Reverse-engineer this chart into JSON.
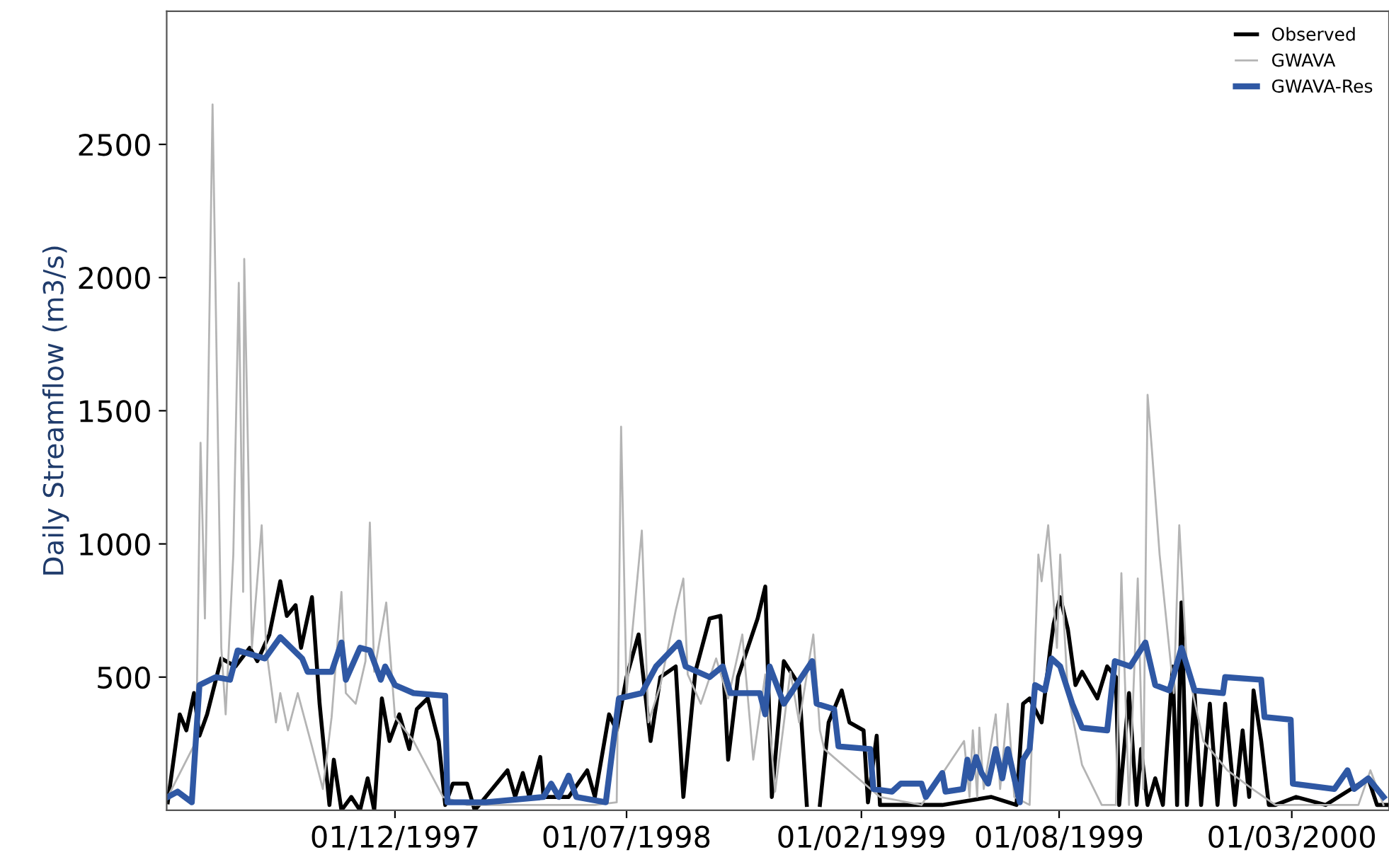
{
  "chart_data": {
    "type": "line",
    "ylabel": "Daily Streamflow (m3/s)",
    "xlim": [
      "1997-05-06",
      "2000-05-29"
    ],
    "ylim": [
      0,
      3000
    ],
    "xticks": [
      {
        "value": "1997-12-01",
        "label": "01/12/1997"
      },
      {
        "value": "1998-07-01",
        "label": "01/07/1998"
      },
      {
        "value": "1999-02-01",
        "label": "01/02/1999"
      },
      {
        "value": "1999-08-01",
        "label": "01/08/1999"
      },
      {
        "value": "2000-03-01",
        "label": "01/03/2000"
      }
    ],
    "yticks": [
      500,
      1000,
      1500,
      2000,
      2500
    ],
    "grid": false,
    "legend": "top right",
    "marker": "none",
    "line_style": "solid",
    "series": [
      {
        "name": "Observed",
        "color": "#000000",
        "x": [
          "1997-05-07",
          "1997-05-18",
          "1997-05-24",
          "1997-05-31",
          "1997-06-05",
          "1997-06-12",
          "1997-06-20",
          "1997-06-25",
          "1997-07-08",
          "1997-07-21",
          "1997-07-28",
          "1997-08-08",
          "1997-08-18",
          "1997-08-24",
          "1997-09-01",
          "1997-09-06",
          "1997-09-16",
          "1997-09-23",
          "1997-10-02",
          "1997-10-06",
          "1997-10-13",
          "1997-10-22",
          "1997-10-30",
          "1997-11-06",
          "1997-11-12",
          "1997-11-19",
          "1997-11-26",
          "1997-12-05",
          "1997-12-14",
          "1997-12-21",
          "1997-12-31",
          "1998-01-10",
          "1998-01-16",
          "1998-01-23",
          "1998-02-05",
          "1998-02-12",
          "1998-03-14",
          "1998-03-21",
          "1998-03-28",
          "1998-04-03",
          "1998-04-13",
          "1998-04-16",
          "1998-05-09",
          "1998-05-26",
          "1998-06-02",
          "1998-06-15",
          "1998-06-22",
          "1998-07-01",
          "1998-07-12",
          "1998-07-23",
          "1998-08-01",
          "1998-08-15",
          "1998-08-22",
          "1998-09-02",
          "1998-09-15",
          "1998-09-25",
          "1998-10-02",
          "1998-10-11",
          "1998-10-29",
          "1998-11-05",
          "1998-11-11",
          "1998-11-22",
          "1998-12-06",
          "1998-12-13",
          "1998-12-22",
          "1998-12-25",
          "1999-01-02",
          "1999-01-14",
          "1999-01-21",
          "1999-02-03",
          "1999-02-07",
          "1999-02-15",
          "1999-02-18",
          "1999-03-09",
          "1999-04-16",
          "1999-05-31",
          "1999-06-23",
          "1999-06-29",
          "1999-07-05",
          "1999-07-16",
          "1999-07-24",
          "1999-07-27",
          "1999-08-02",
          "1999-08-09",
          "1999-08-16",
          "1999-08-22",
          "1999-09-05",
          "1999-09-14",
          "1999-09-22",
          "1999-09-25",
          "1999-10-04",
          "1999-10-11",
          "1999-10-15",
          "1999-10-21",
          "1999-10-28",
          "1999-11-04",
          "1999-11-13",
          "1999-11-17",
          "1999-11-21",
          "1999-11-26",
          "1999-12-03",
          "1999-12-09",
          "1999-12-17",
          "1999-12-24",
          "1999-12-31",
          "2000-01-09",
          "2000-01-16",
          "2000-01-22",
          "2000-01-26",
          "2000-02-02",
          "2000-02-09",
          "2000-02-15",
          "2000-03-05",
          "2000-04-01",
          "2000-05-10",
          "2000-05-18",
          "2000-05-28"
        ],
        "values": [
          30,
          360,
          300,
          440,
          280,
          360,
          490,
          570,
          540,
          610,
          560,
          660,
          860,
          730,
          770,
          610,
          800,
          400,
          20,
          190,
          0,
          50,
          0,
          120,
          0,
          420,
          260,
          360,
          230,
          380,
          420,
          260,
          20,
          100,
          100,
          0,
          150,
          50,
          140,
          50,
          200,
          50,
          50,
          150,
          50,
          360,
          300,
          500,
          660,
          260,
          500,
          540,
          50,
          520,
          720,
          730,
          190,
          500,
          720,
          840,
          50,
          560,
          470,
          20,
          null,
          20,
          330,
          450,
          330,
          300,
          30,
          280,
          20,
          20,
          20,
          50,
          20,
          400,
          420,
          330,
          610,
          700,
          800,
          680,
          470,
          520,
          420,
          540,
          500,
          20,
          440,
          20,
          230,
          20,
          120,
          20,
          540,
          20,
          780,
          20,
          440,
          20,
          400,
          20,
          400,
          20,
          300,
          50,
          450,
          260,
          20,
          20,
          50,
          20,
          120,
          20,
          20
        ]
      },
      {
        "name": "GWAVA",
        "color": "#b4b4b4",
        "x": [
          "1997-05-07",
          "1997-06-02",
          "1997-06-06",
          "1997-06-10",
          "1997-06-17",
          "1997-06-25",
          "1997-06-29",
          "1997-07-06",
          "1997-07-11",
          "1997-07-15",
          "1997-07-16",
          "1997-07-23",
          "1997-08-01",
          "1997-08-05",
          "1997-08-14",
          "1997-08-18",
          "1997-08-25",
          "1997-09-03",
          "1997-09-16",
          "1997-09-26",
          "1997-10-04",
          "1997-10-13",
          "1997-10-17",
          "1997-10-26",
          "1997-11-04",
          "1997-11-08",
          "1997-11-12",
          "1997-11-23",
          "1997-12-01",
          "1997-12-18",
          "1998-01-14",
          "1998-02-05",
          "1998-06-02",
          "1998-06-22",
          "1998-06-26",
          "1998-07-01",
          "1998-07-15",
          "1998-07-21",
          "1998-08-01",
          "1998-08-15",
          "1998-08-22",
          "1998-08-26",
          "1998-09-07",
          "1998-09-21",
          "1998-10-02",
          "1998-10-15",
          "1998-10-25",
          "1998-11-05",
          "1998-11-14",
          "1998-11-28",
          "1998-12-06",
          "1998-12-19",
          "1998-12-25",
          "1998-12-29",
          "1999-01-29",
          "1999-02-18",
          "1999-03-28",
          "1999-05-06",
          "1999-05-11",
          "1999-05-14",
          "1999-05-18",
          "1999-05-20",
          "1999-05-24",
          "1999-06-04",
          "1999-06-08",
          "1999-06-15",
          "1999-06-21",
          "1999-07-05",
          "1999-07-13",
          "1999-07-16",
          "1999-07-22",
          "1999-07-30",
          "1999-08-02",
          "1999-08-09",
          "1999-08-22",
          "1999-09-09",
          "1999-09-22",
          "1999-09-27",
          "1999-10-04",
          "1999-10-12",
          "1999-10-17",
          "1999-10-21",
          "1999-10-25",
          "1999-11-01",
          "1999-11-14",
          "1999-11-19",
          "1999-11-26",
          "1999-12-11",
          "2000-01-02",
          "2000-01-25",
          "2000-02-15",
          "2000-05-01",
          "2000-05-12",
          "2000-05-24"
        ],
        "values": [
          50,
          260,
          1380,
          720,
          2650,
          610,
          360,
          960,
          1980,
          820,
          2070,
          610,
          1070,
          610,
          330,
          440,
          300,
          440,
          240,
          80,
          350,
          820,
          440,
          400,
          560,
          1080,
          520,
          780,
          350,
          260,
          50,
          20,
          20,
          30,
          1440,
          440,
          1050,
          330,
          470,
          750,
          870,
          510,
          400,
          570,
          420,
          660,
          190,
          510,
          70,
          520,
          330,
          660,
          300,
          230,
          120,
          50,
          20,
          260,
          50,
          300,
          50,
          310,
          80,
          360,
          80,
          400,
          50,
          20,
          960,
          860,
          1070,
          610,
          960,
          440,
          170,
          20,
          20,
          890,
          20,
          870,
          80,
          1560,
          1350,
          960,
          440,
          1070,
          540,
          260,
          150,
          80,
          20,
          20,
          150,
          20
        ]
      },
      {
        "name": "GWAVA-Res",
        "color": "#2f58a4",
        "x": [
          "1997-05-07",
          "1997-05-16",
          "1997-05-29",
          "1997-06-05",
          "1997-06-20",
          "1997-07-03",
          "1997-07-10",
          "1997-08-04",
          "1997-08-18",
          "1997-09-07",
          "1997-09-12",
          "1997-10-04",
          "1997-10-13",
          "1997-10-17",
          "1997-10-30",
          "1997-11-08",
          "1997-11-18",
          "1997-11-22",
          "1997-12-01",
          "1997-12-18",
          "1998-01-16",
          "1998-01-18",
          "1998-02-05",
          "1998-02-22",
          "1998-04-16",
          "1998-04-23",
          "1998-04-30",
          "1998-05-09",
          "1998-05-16",
          "1998-06-12",
          "1998-06-24",
          "1998-07-15",
          "1998-07-28",
          "1998-08-18",
          "1998-08-24",
          "1998-09-15",
          "1998-09-27",
          "1998-10-04",
          "1998-10-31",
          "1998-11-05",
          "1998-11-09",
          "1998-11-22",
          "1998-12-18",
          "1998-12-22",
          "1999-01-07",
          "1999-01-11",
          "1999-02-09",
          "1999-02-12",
          "1999-03-01",
          "1999-03-09",
          "1999-03-28",
          "1999-04-01",
          "1999-04-16",
          "1999-04-19",
          "1999-05-05",
          "1999-05-09",
          "1999-05-12",
          "1999-05-17",
          "1999-05-22",
          "1999-05-28",
          "1999-06-04",
          "1999-06-10",
          "1999-06-15",
          "1999-06-21",
          "1999-06-26",
          "1999-06-29",
          "1999-07-05",
          "1999-07-10",
          "1999-07-19",
          "1999-07-25",
          "1999-08-02",
          "1999-08-13",
          "1999-08-22",
          "1999-09-14",
          "1999-09-21",
          "1999-10-05",
          "1999-10-19",
          "1999-10-28",
          "1999-11-10",
          "1999-11-21",
          "1999-12-03",
          "1999-12-29",
          "1999-12-31",
          "2000-02-02",
          "2000-02-05",
          "2000-02-29",
          "2000-03-02",
          "2000-04-09",
          "2000-04-21",
          "2000-04-27",
          "2000-05-10",
          "2000-05-24"
        ],
        "values": [
          50,
          70,
          30,
          470,
          500,
          490,
          600,
          570,
          650,
          570,
          520,
          520,
          630,
          490,
          610,
          600,
          490,
          540,
          470,
          440,
          430,
          30,
          30,
          30,
          50,
          100,
          50,
          130,
          50,
          30,
          420,
          440,
          540,
          630,
          540,
          500,
          540,
          440,
          440,
          360,
          540,
          400,
          560,
          400,
          380,
          240,
          230,
          80,
          70,
          100,
          100,
          50,
          140,
          70,
          80,
          190,
          120,
          200,
          140,
          100,
          230,
          120,
          230,
          120,
          30,
          190,
          230,
          470,
          450,
          570,
          540,
          400,
          310,
          300,
          560,
          540,
          630,
          470,
          450,
          610,
          450,
          440,
          500,
          490,
          350,
          340,
          100,
          80,
          150,
          80,
          120,
          50
        ]
      }
    ]
  }
}
